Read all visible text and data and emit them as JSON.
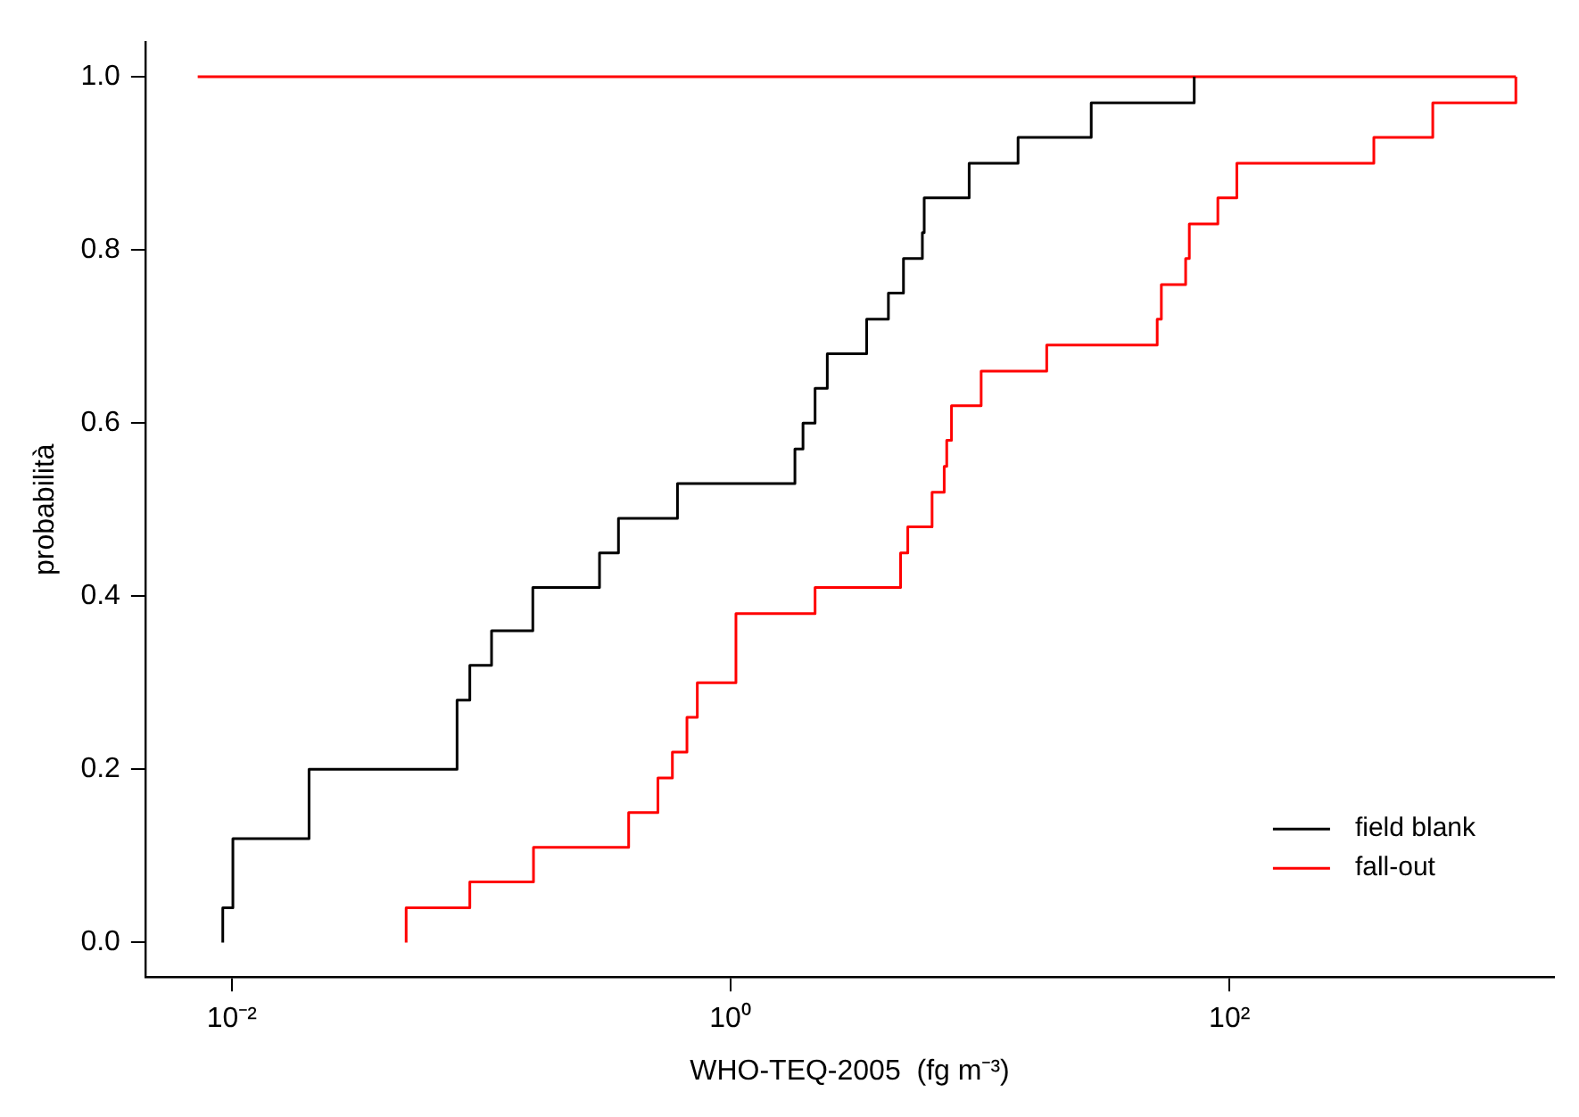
{
  "chart_data": {
    "type": "step",
    "xlabel": "WHO-TEQ-2005  (fg m⁻³)",
    "ylabel": "probabilità",
    "log": "x",
    "xlim": [
      0.0045,
      2000
    ],
    "ylim": [
      -0.04,
      1.04
    ],
    "xticks": [
      {
        "value": 0.01,
        "label": "10⁻²"
      },
      {
        "value": 1,
        "label": "10⁰"
      },
      {
        "value": 100,
        "label": "10²"
      }
    ],
    "yticks": [
      {
        "value": 0,
        "label": "0.0"
      },
      {
        "value": 0.2,
        "label": "0.2"
      },
      {
        "value": 0.4,
        "label": "0.4"
      },
      {
        "value": 0.6,
        "label": "0.6"
      },
      {
        "value": 0.8,
        "label": "0.8"
      },
      {
        "value": 1,
        "label": "1.0"
      }
    ],
    "grid": false,
    "legend": "bottom right",
    "marker": "none",
    "line_style": "solid",
    "series": [
      {
        "name": "field blank",
        "color": "#000000",
        "x": [
          0.0092,
          0.0092,
          0.0101,
          0.0204,
          0.08,
          0.09,
          0.11,
          0.161,
          0.298,
          0.355,
          0.612,
          1.81,
          1.95,
          2.18,
          2.44,
          3.51,
          4.29,
          4.93,
          5.87,
          5.97,
          9.04,
          14.2,
          27.9,
          72.2
        ],
        "values": [
          0,
          0.04,
          0.12,
          0.2,
          0.28,
          0.32,
          0.36,
          0.41,
          0.45,
          0.49,
          0.53,
          0.57,
          0.6,
          0.64,
          0.68,
          0.72,
          0.75,
          0.79,
          0.82,
          0.86,
          0.9,
          0.93,
          0.97,
          1
        ]
      },
      {
        "name": "fall-out",
        "color": "#ff0000",
        "x": [
          0.05,
          0.05,
          0.09,
          0.162,
          0.39,
          0.511,
          0.584,
          0.668,
          0.735,
          1.05,
          2.18,
          4.8,
          5.13,
          6.42,
          7.18,
          7.35,
          7.68,
          10.1,
          18.5,
          51.3,
          53.3,
          66.7,
          69.0,
          89.8,
          107,
          379,
          653,
          1406
        ],
        "values": [
          0,
          0.04,
          0.07,
          0.11,
          0.15,
          0.19,
          0.22,
          0.26,
          0.3,
          0.38,
          0.41,
          0.45,
          0.48,
          0.52,
          0.55,
          0.58,
          0.62,
          0.66,
          0.69,
          0.72,
          0.76,
          0.79,
          0.83,
          0.86,
          0.9,
          0.93,
          0.97,
          1
        ]
      },
      {
        "type": "line",
        "color": "#ff0000",
        "x": [
          0.0073,
          1406
        ],
        "values": [
          1,
          1
        ]
      }
    ]
  }
}
